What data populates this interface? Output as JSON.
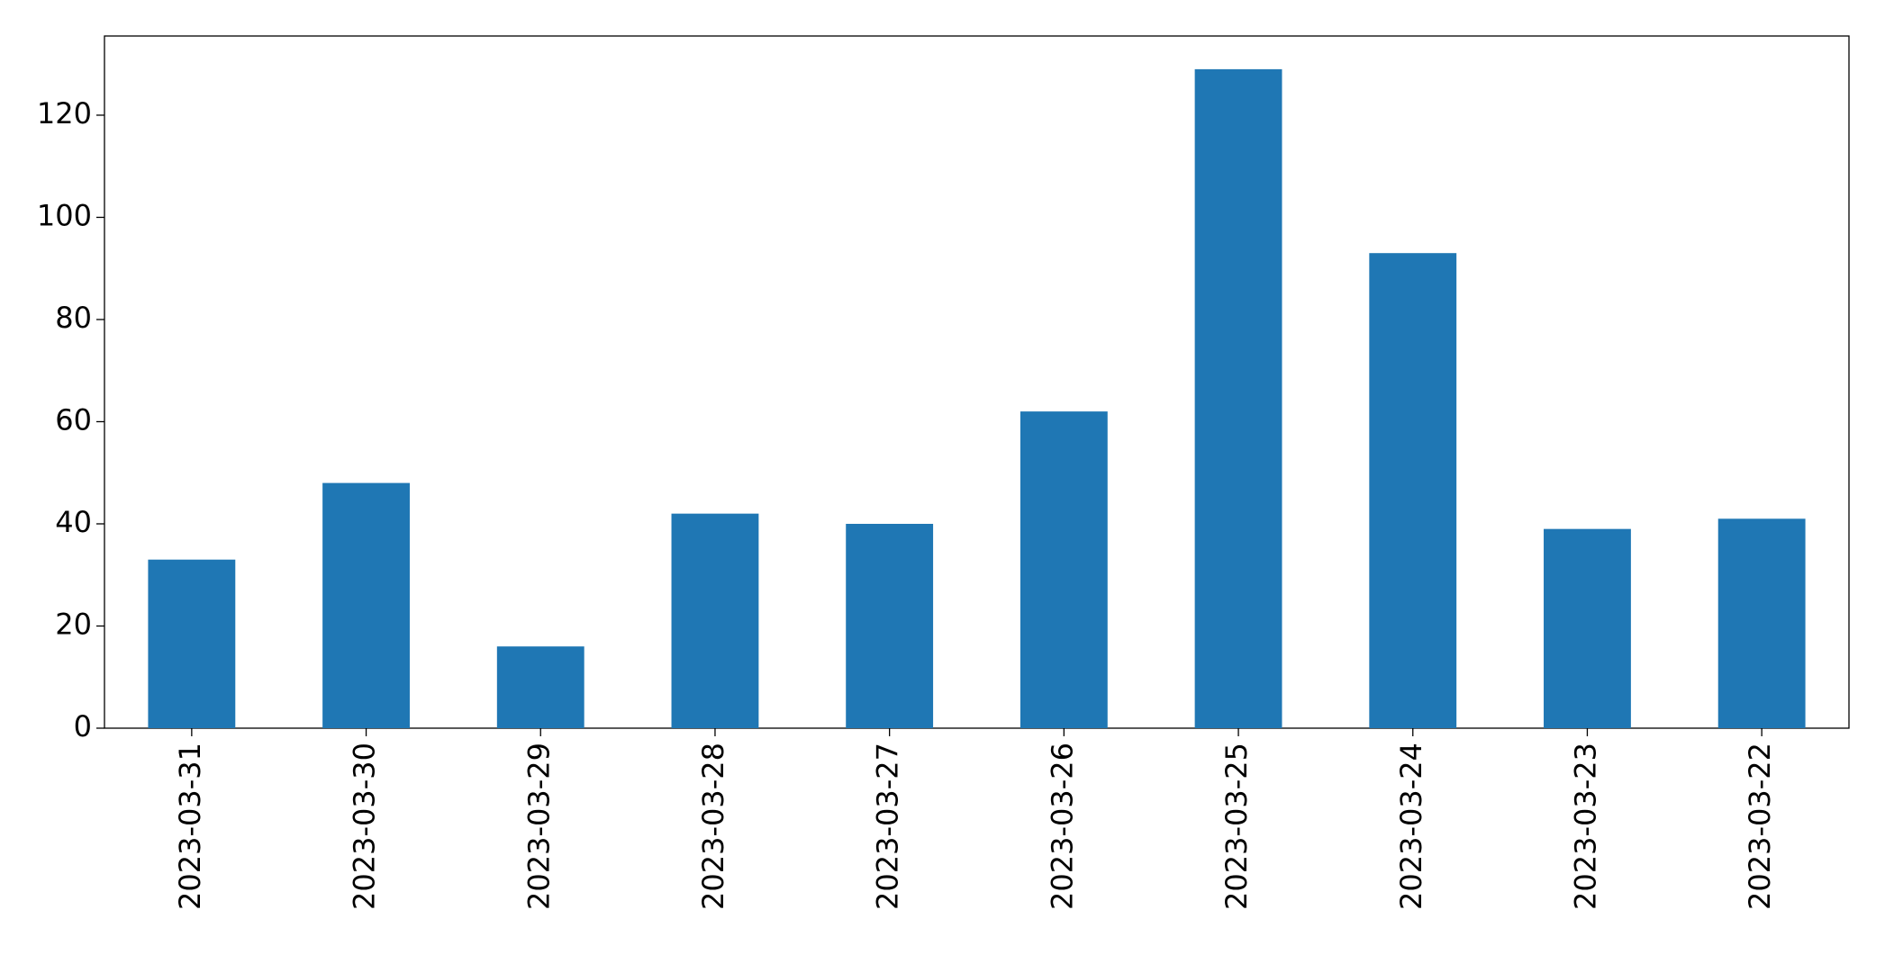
{
  "chart_data": {
    "type": "bar",
    "categories": [
      "2023-03-31",
      "2023-03-30",
      "2023-03-29",
      "2023-03-28",
      "2023-03-27",
      "2023-03-26",
      "2023-03-25",
      "2023-03-24",
      "2023-03-23",
      "2023-03-22"
    ],
    "values": [
      33,
      48,
      16,
      42,
      40,
      62,
      129,
      93,
      39,
      41
    ],
    "color": "#1f77b4",
    "ylim": [
      0,
      135.5
    ],
    "yticks": [
      0,
      20,
      40,
      60,
      80,
      100,
      120
    ],
    "grid": false
  }
}
